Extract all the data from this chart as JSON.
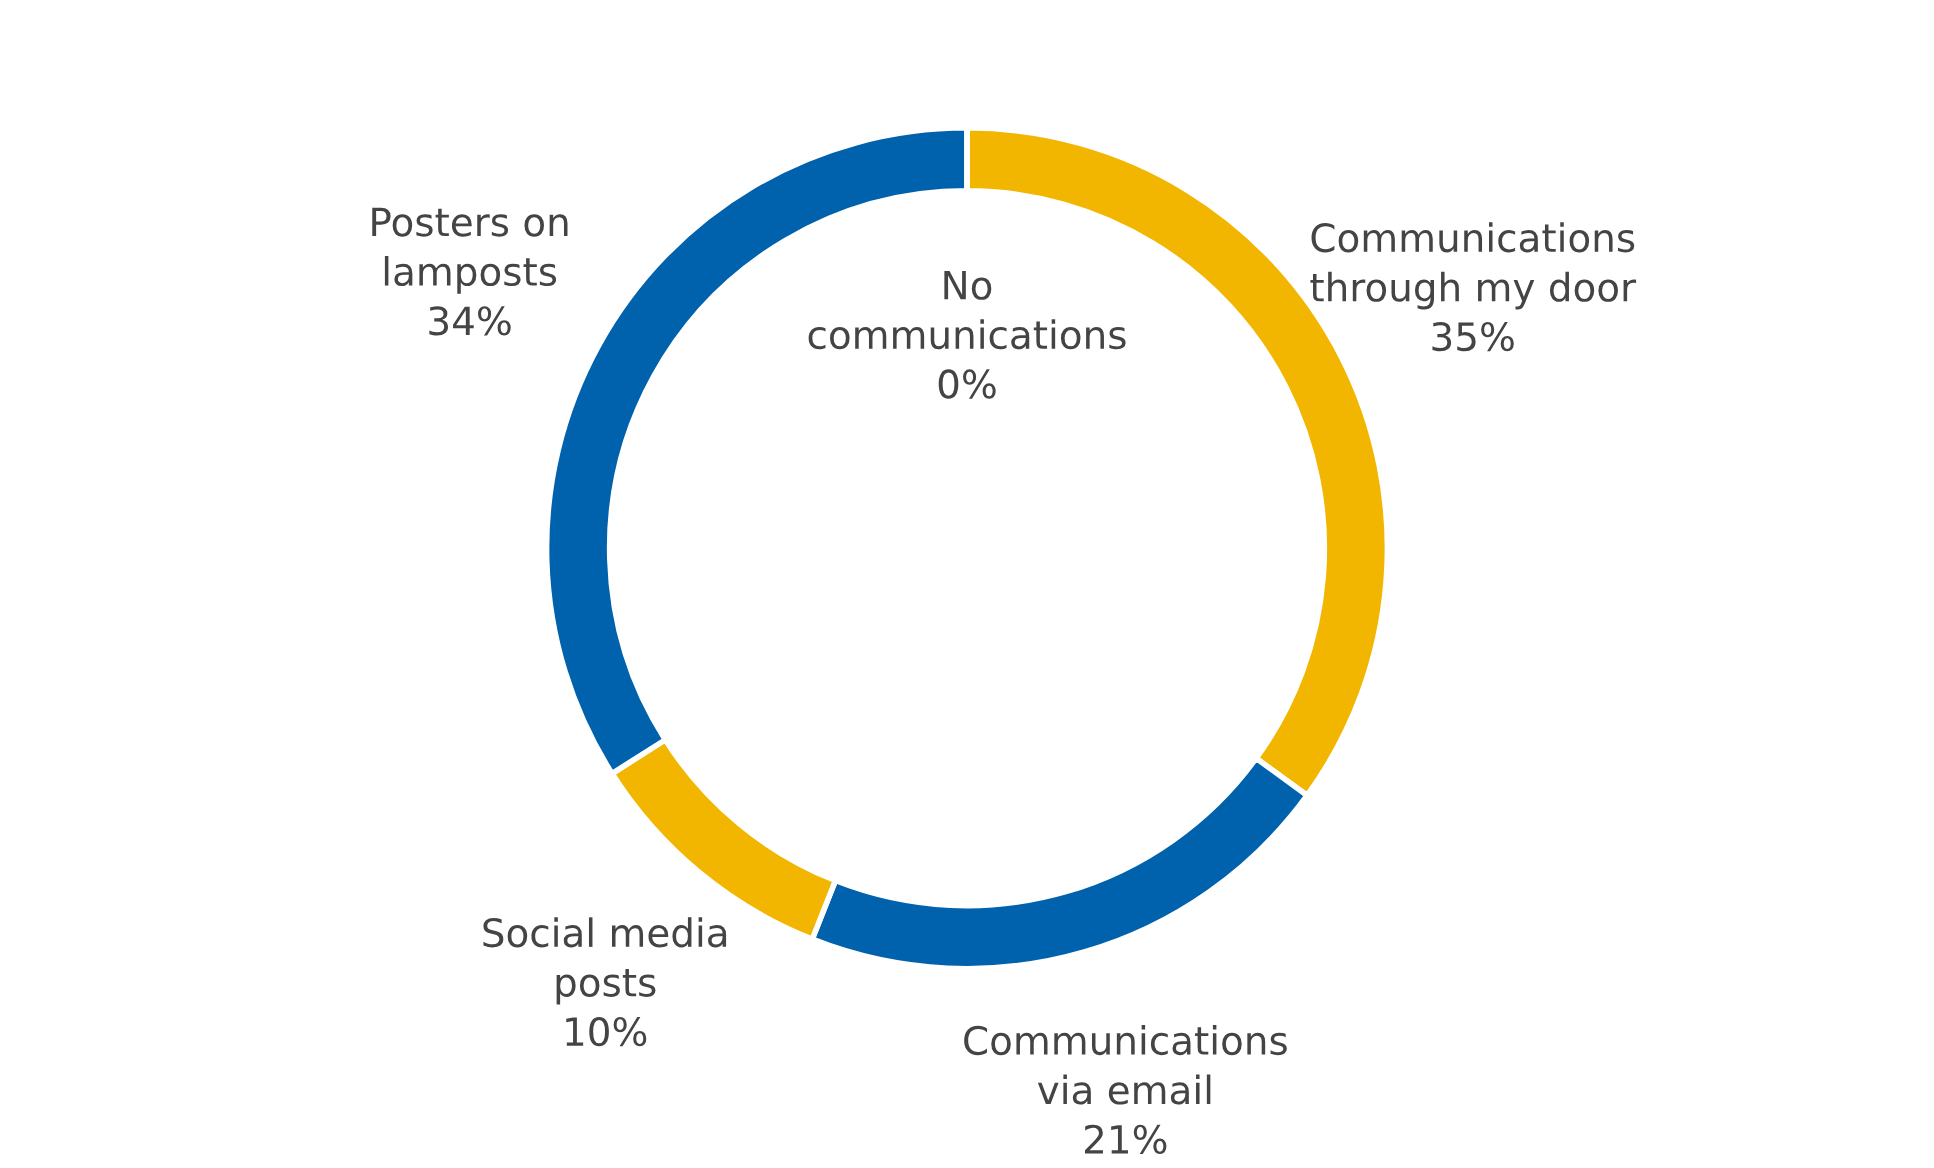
{
  "chart_data": {
    "type": "donut",
    "categories": [
      "Communications through my door",
      "Communications via email",
      "Social media posts",
      "Posters on lamposts",
      "No communications"
    ],
    "values": [
      35,
      21,
      10,
      34,
      0
    ],
    "value_labels": [
      "35%",
      "21%",
      "10%",
      "34%",
      "0%"
    ],
    "colors": [
      "#f2b600",
      "#0062ad",
      "#f2b600",
      "#0062ad",
      "#0062ad"
    ],
    "legend": false
  }
}
